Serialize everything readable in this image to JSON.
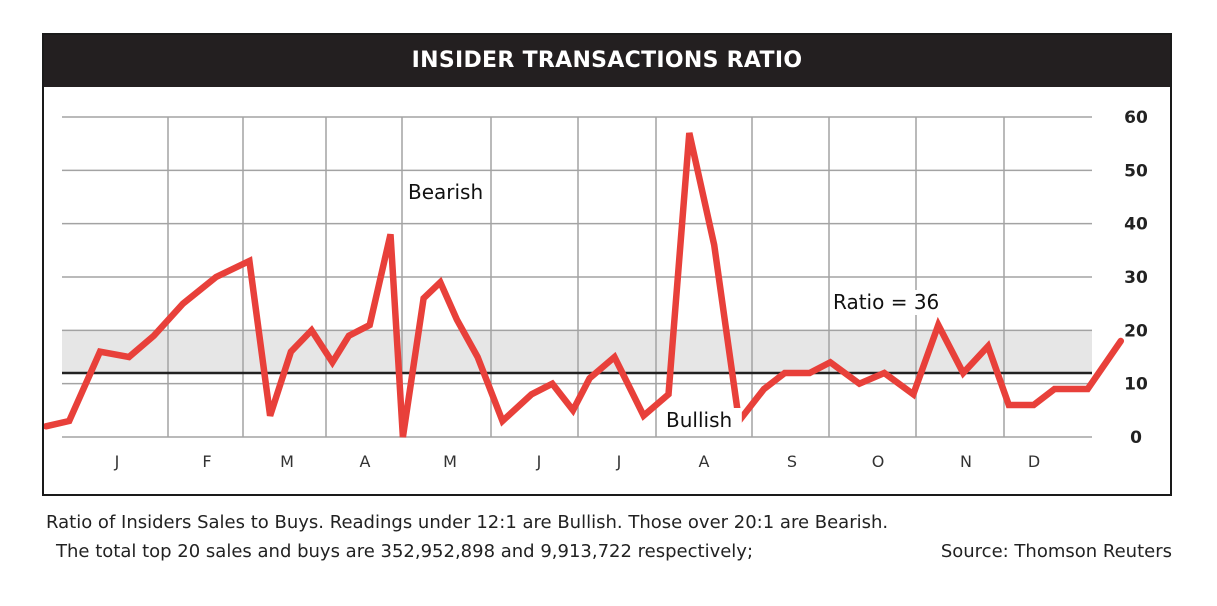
{
  "chart_data": {
    "type": "line",
    "title": "INSIDER TRANSACTIONS RATIO",
    "categories": [
      "J",
      "F",
      "M",
      "A",
      "M",
      "J",
      "J",
      "A",
      "S",
      "O",
      "N",
      "D"
    ],
    "ylim": [
      0,
      60
    ],
    "yticks": [
      0,
      10,
      20,
      30,
      40,
      50,
      60
    ],
    "grid": true,
    "y_axis_position": "right",
    "bullish_threshold": 12,
    "bearish_threshold": 20,
    "band_color": "#e6e6e6",
    "line_color": "#e8403a",
    "series": [
      {
        "x": [
          0.0,
          0.28,
          0.65,
          1.0,
          1.3,
          1.65,
          2.05,
          2.45,
          2.7,
          2.95,
          3.2,
          3.45,
          3.65,
          3.9,
          4.15,
          4.3,
          4.55,
          4.75,
          4.95,
          5.2,
          5.5,
          5.85,
          6.1,
          6.35,
          6.55,
          6.85,
          7.2,
          7.5,
          7.75,
          8.05,
          8.35,
          8.65,
          8.9,
          9.2,
          9.45,
          9.8,
          10.1,
          10.45,
          10.75,
          11.05,
          11.35,
          11.6,
          11.9,
          12.15,
          12.55,
          12.95
        ],
        "y": [
          2,
          3,
          16,
          15,
          19,
          25,
          30,
          33,
          4,
          16,
          20,
          14,
          19,
          21,
          38,
          0,
          26,
          29,
          22,
          15,
          3,
          8,
          10,
          5,
          11,
          15,
          4,
          8,
          57,
          36,
          3,
          9,
          12,
          12,
          14,
          10,
          12,
          8,
          21,
          12,
          17,
          6,
          6,
          9,
          9,
          18
        ]
      }
    ],
    "annotations": {
      "bearish": "Bearish",
      "bullish": "Bullish",
      "ratio": "Ratio = 36"
    }
  },
  "caption": {
    "line1": "Ratio of Insiders Sales to Buys. Readings under 12:1 are Bullish. Those over 20:1 are Bearish.",
    "line2": "The total top 20 sales and buys are 352,952,898 and 9,913,722 respectively;",
    "source": "Source: Thomson Reuters"
  }
}
